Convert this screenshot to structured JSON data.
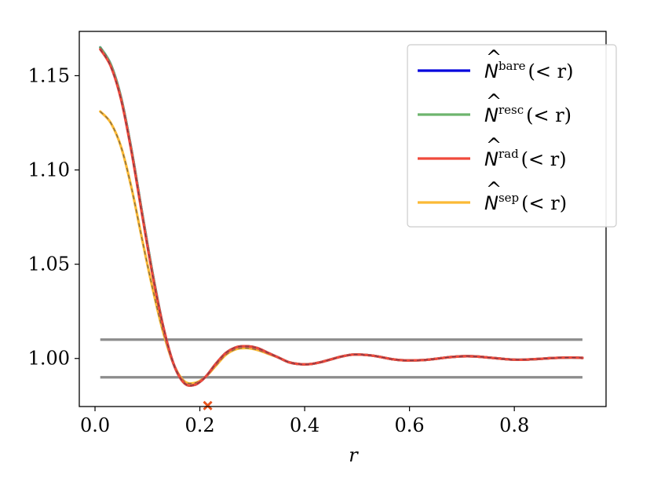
{
  "chart_data": {
    "type": "line",
    "xlabel": "r",
    "ylabel": "",
    "xlim": [
      -0.03,
      0.975
    ],
    "ylim": [
      0.9745,
      1.1735
    ],
    "xticks": [
      0.0,
      0.2,
      0.4,
      0.6,
      0.8
    ],
    "xtick_labels": [
      "0.0",
      "0.2",
      "0.4",
      "0.6",
      "0.8"
    ],
    "yticks": [
      1.0,
      1.05,
      1.1,
      1.15
    ],
    "ytick_labels": [
      "1.00",
      "1.05",
      "1.10",
      "1.15"
    ],
    "grid": false,
    "legend_position": "top-right",
    "reference_lines": [
      1.01,
      0.99
    ],
    "reference_line_color": "#8c8c8c",
    "markers": [
      {
        "x": 0.215,
        "y": 0.975,
        "symbol": "x",
        "color": "#e8531e"
      }
    ],
    "x": [
      0.01,
      0.03,
      0.05,
      0.07,
      0.09,
      0.11,
      0.13,
      0.15,
      0.17,
      0.19,
      0.21,
      0.23,
      0.25,
      0.27,
      0.29,
      0.31,
      0.33,
      0.35,
      0.37,
      0.39,
      0.41,
      0.43,
      0.45,
      0.47,
      0.49,
      0.51,
      0.53,
      0.55,
      0.57,
      0.59,
      0.61,
      0.63,
      0.65,
      0.67,
      0.69,
      0.71,
      0.73,
      0.75,
      0.77,
      0.79,
      0.81,
      0.83,
      0.85,
      0.87,
      0.89,
      0.91,
      0.93
    ],
    "series": [
      {
        "name": "bare",
        "color": "#0000dd",
        "values": [
          1.165,
          1.156,
          1.138,
          1.11,
          1.077,
          1.045,
          1.017,
          0.997,
          0.987,
          0.986,
          0.99,
          0.997,
          1.003,
          1.006,
          1.0065,
          1.0055,
          1.003,
          1.0005,
          0.998,
          0.997,
          0.997,
          0.998,
          0.9995,
          1.001,
          1.002,
          1.002,
          1.0015,
          1.0005,
          0.9995,
          0.999,
          0.999,
          0.9992,
          0.9998,
          1.0005,
          1.001,
          1.0012,
          1.001,
          1.0005,
          1.0,
          0.9995,
          0.9993,
          0.9995,
          0.9998,
          1.0002,
          1.0004,
          1.0005,
          1.0003
        ]
      },
      {
        "name": "resc",
        "color": "#6db56d",
        "values": [
          1.165,
          1.156,
          1.138,
          1.11,
          1.077,
          1.045,
          1.017,
          0.997,
          0.987,
          0.986,
          0.99,
          0.997,
          1.003,
          1.006,
          1.0065,
          1.0055,
          1.003,
          1.0005,
          0.998,
          0.997,
          0.997,
          0.998,
          0.9995,
          1.001,
          1.002,
          1.002,
          1.0015,
          1.0005,
          0.9995,
          0.999,
          0.999,
          0.9992,
          0.9998,
          1.0005,
          1.001,
          1.0012,
          1.001,
          1.0005,
          1.0,
          0.9995,
          0.9993,
          0.9995,
          0.9998,
          1.0002,
          1.0004,
          1.0005,
          1.0003
        ]
      },
      {
        "name": "rad",
        "color": "#f04a3c",
        "values": [
          1.164,
          1.155,
          1.137,
          1.109,
          1.076,
          1.044,
          1.017,
          0.997,
          0.987,
          0.986,
          0.99,
          0.997,
          1.003,
          1.006,
          1.0065,
          1.0055,
          1.003,
          1.0005,
          0.998,
          0.997,
          0.997,
          0.998,
          0.9995,
          1.001,
          1.002,
          1.002,
          1.0015,
          1.0005,
          0.9995,
          0.999,
          0.999,
          0.9992,
          0.9998,
          1.0005,
          1.001,
          1.0012,
          1.001,
          1.0005,
          1.0,
          0.9995,
          0.9993,
          0.9995,
          0.9998,
          1.0002,
          1.0004,
          1.0005,
          1.0003
        ]
      },
      {
        "name": "sep",
        "color": "#fbb934",
        "values": [
          1.131,
          1.125,
          1.112,
          1.09,
          1.063,
          1.037,
          1.014,
          0.997,
          0.988,
          0.987,
          0.99,
          0.996,
          1.002,
          1.005,
          1.0055,
          1.0045,
          1.0025,
          1.0005,
          0.998,
          0.997,
          0.997,
          0.998,
          0.9995,
          1.001,
          1.002,
          1.002,
          1.0015,
          1.0005,
          0.9995,
          0.999,
          0.999,
          0.9992,
          0.9998,
          1.0005,
          1.001,
          1.0012,
          1.001,
          1.0005,
          1.0,
          0.9995,
          0.9993,
          0.9995,
          0.9998,
          1.0002,
          1.0004,
          1.0005,
          1.0003
        ]
      }
    ],
    "legend": [
      {
        "symbol": "̂𝒩",
        "base": "N",
        "sup": "bare",
        "suffix": "(< r)",
        "color": "#0000dd"
      },
      {
        "symbol": "̂𝒩",
        "base": "N",
        "sup": "resc",
        "suffix": "(< r)",
        "color": "#6db56d"
      },
      {
        "symbol": "̂𝒩",
        "base": "N",
        "sup": "rad",
        "suffix": "(< r)",
        "color": "#f04a3c"
      },
      {
        "symbol": "̂𝒩",
        "base": "N",
        "sup": "sep",
        "suffix": "(< r)",
        "color": "#fbb934"
      }
    ]
  }
}
